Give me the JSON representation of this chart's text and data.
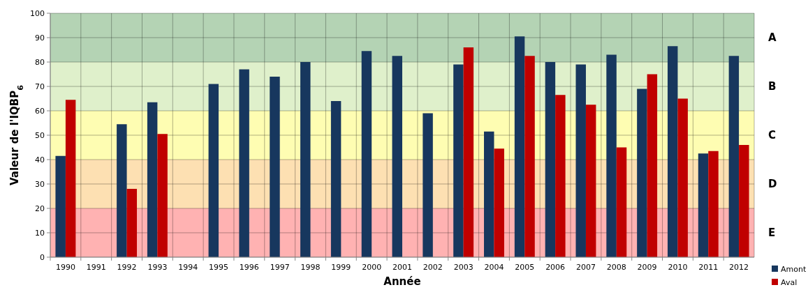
{
  "chart_data": {
    "type": "bar",
    "xlabel": "Année",
    "ylabel": "Valeur de l'IQBP$_{6}$",
    "categories": [
      "1990",
      "1991",
      "1992",
      "1993",
      "1994",
      "1995",
      "1996",
      "1997",
      "1998",
      "1999",
      "2000",
      "2001",
      "2002",
      "2003",
      "2004",
      "2005",
      "2006",
      "2007",
      "2008",
      "2009",
      "2010",
      "2011",
      "2012"
    ],
    "series": [
      {
        "name": "Amont",
        "color": "#17375e",
        "values": [
          41.5,
          null,
          54.5,
          63.5,
          null,
          71,
          77,
          74,
          80,
          64,
          84.5,
          82.5,
          59,
          79,
          51.5,
          90.5,
          80,
          79,
          83,
          69,
          86.5,
          42.5,
          82.5
        ]
      },
      {
        "name": "Aval",
        "color": "#c00000",
        "values": [
          64.5,
          null,
          28,
          50.5,
          null,
          null,
          null,
          null,
          null,
          null,
          null,
          null,
          null,
          86,
          44.5,
          82.5,
          66.5,
          62.5,
          45,
          75,
          65,
          43.5,
          46
        ]
      }
    ],
    "ylim": [
      0,
      100
    ],
    "yticks": [
      0,
      10,
      20,
      30,
      40,
      50,
      60,
      70,
      80,
      90,
      100
    ],
    "grid": true,
    "legend": "bottom right",
    "bands": [
      {
        "axis": "y",
        "from": 80,
        "to": 100,
        "label": "A",
        "color": "#b4d3b4"
      },
      {
        "axis": "y",
        "from": 60,
        "to": 80,
        "label": "B",
        "color": "#dff0cb"
      },
      {
        "axis": "y",
        "from": 40,
        "to": 60,
        "label": "C",
        "color": "#fefdb2"
      },
      {
        "axis": "y",
        "from": 20,
        "to": 40,
        "label": "D",
        "color": "#fde0b2"
      },
      {
        "axis": "y",
        "from": 0,
        "to": 20,
        "label": "E",
        "color": "#ffb2b2"
      }
    ]
  }
}
